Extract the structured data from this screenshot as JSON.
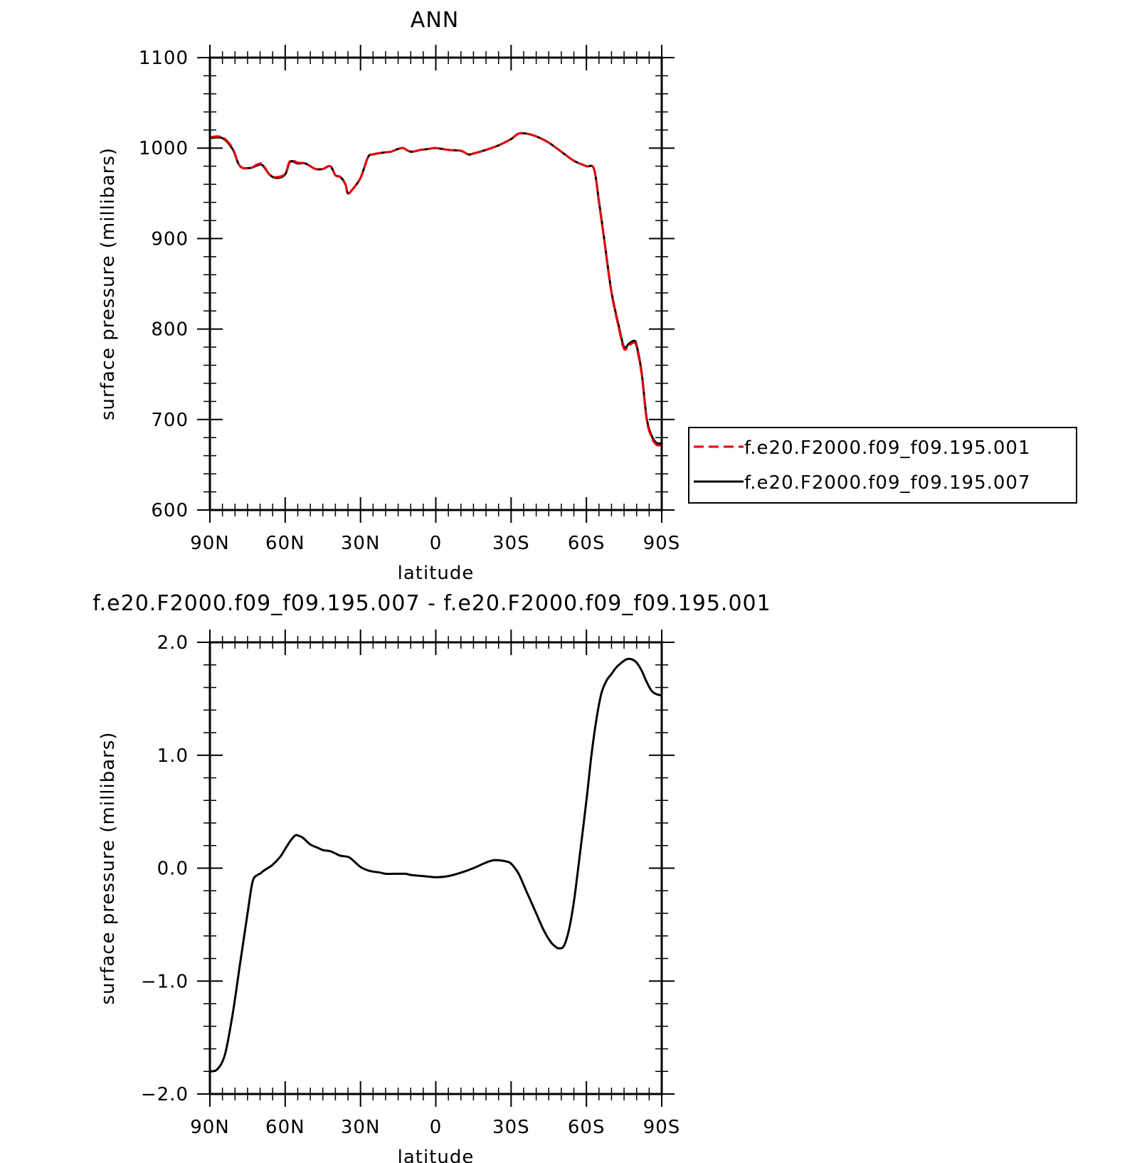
{
  "chart_data": [
    {
      "type": "line",
      "title": "ANN",
      "xlabel": "latitude",
      "ylabel": "surface pressure (millibars)",
      "xlim": [
        90,
        -90
      ],
      "ylim": [
        600,
        1100
      ],
      "x_ticks": [
        {
          "value": 90,
          "label": "90N"
        },
        {
          "value": 60,
          "label": "60N"
        },
        {
          "value": 30,
          "label": "30N"
        },
        {
          "value": 0,
          "label": "0"
        },
        {
          "value": -30,
          "label": "30S"
        },
        {
          "value": -60,
          "label": "60S"
        },
        {
          "value": -90,
          "label": "90S"
        }
      ],
      "y_ticks": [
        {
          "value": 1100,
          "label": "1100"
        },
        {
          "value": 1000,
          "label": "1000"
        },
        {
          "value": 900,
          "label": "900"
        },
        {
          "value": 800,
          "label": "800"
        },
        {
          "value": 700,
          "label": "700"
        },
        {
          "value": 600,
          "label": "600"
        }
      ],
      "grid": false,
      "legend_position": "right",
      "x": [
        90,
        85,
        81,
        78,
        74,
        71,
        69,
        66,
        63,
        60,
        58,
        55,
        52,
        48,
        45,
        42,
        40,
        38,
        36,
        35,
        33,
        30,
        27,
        25,
        21,
        18,
        15,
        13,
        10,
        6,
        3,
        0,
        -5,
        -10,
        -13,
        -15,
        -20,
        -25,
        -30,
        -33,
        -36,
        -40,
        -45,
        -50,
        -55,
        -60,
        -63,
        -65,
        -67,
        -70,
        -73,
        -75,
        -77,
        -79,
        -80,
        -82,
        -84,
        -86,
        -88,
        -90
      ],
      "series": [
        {
          "name": "f.e20.F2000.f09_f09.195.001",
          "color": "#e8000b",
          "dash": true,
          "values": [
            1012,
            1012,
            1000,
            980,
            978,
            982,
            982,
            970,
            968,
            972,
            986,
            984,
            983,
            977,
            977,
            980,
            970,
            968,
            960,
            950,
            955,
            967,
            990,
            993,
            995,
            996,
            999,
            1000,
            996,
            998,
            999,
            1000,
            998,
            997,
            993,
            994,
            998,
            1003,
            1010,
            1016,
            1016,
            1013,
            1006,
            996,
            986,
            980,
            977,
            940,
            900,
            840,
            800,
            778,
            782,
            785,
            780,
            750,
            700,
            680,
            672,
            672
          ]
        },
        {
          "name": "f.e20.F2000.f09_f09.195.007",
          "color": "#000000",
          "dash": false,
          "values": [
            1011,
            1011,
            999,
            980,
            978,
            981,
            981,
            970,
            967,
            971,
            985,
            983,
            983,
            977,
            977,
            980,
            970,
            968,
            960,
            950,
            955,
            967,
            990,
            993,
            995,
            996,
            999,
            1000,
            996,
            998,
            999,
            1000,
            998,
            997,
            993,
            994,
            998,
            1003,
            1010,
            1016,
            1016,
            1013,
            1006,
            996,
            986,
            980,
            977,
            941,
            901,
            841,
            802,
            780,
            784,
            787,
            782,
            752,
            702,
            682,
            674,
            674
          ]
        }
      ]
    },
    {
      "type": "line",
      "title": "f.e20.F2000.f09_f09.195.007 - f.e20.F2000.f09_f09.195.001",
      "xlabel": "latitude",
      "ylabel": "surface pressure (millibars)",
      "xlim": [
        90,
        -90
      ],
      "ylim": [
        -2.0,
        2.0
      ],
      "x_ticks": [
        {
          "value": 90,
          "label": "90N"
        },
        {
          "value": 60,
          "label": "60N"
        },
        {
          "value": 30,
          "label": "30N"
        },
        {
          "value": 0,
          "label": "0"
        },
        {
          "value": -30,
          "label": "30S"
        },
        {
          "value": -60,
          "label": "60S"
        },
        {
          "value": -90,
          "label": "90S"
        }
      ],
      "y_ticks": [
        {
          "value": 2.0,
          "label": "2.0"
        },
        {
          "value": 1.0,
          "label": "1.0"
        },
        {
          "value": 0.0,
          "label": "0.0"
        },
        {
          "value": -1.0,
          "label": "−1.0"
        },
        {
          "value": -2.0,
          "label": "−2.0"
        }
      ],
      "grid": false,
      "x": [
        90,
        87,
        84,
        81,
        78,
        75,
        73,
        71,
        70,
        69,
        67,
        65,
        62,
        60,
        58,
        56,
        55,
        53,
        50,
        47,
        45,
        42,
        40,
        38,
        35,
        33,
        30,
        27,
        25,
        22,
        20,
        17,
        15,
        12,
        10,
        5,
        0,
        -5,
        -10,
        -15,
        -20,
        -23,
        -25,
        -28,
        -30,
        -33,
        -36,
        -40,
        -43,
        -46,
        -48,
        -49,
        -51,
        -53,
        -55,
        -57,
        -60,
        -62,
        -64,
        -66,
        -68,
        -70,
        -72,
        -74,
        -76,
        -78,
        -80,
        -82,
        -84,
        -86,
        -88,
        -90
      ],
      "series": [
        {
          "name": "",
          "color": "#000000",
          "dash": false,
          "values": [
            -1.8,
            -1.78,
            -1.65,
            -1.3,
            -0.85,
            -0.4,
            -0.12,
            -0.06,
            -0.05,
            -0.03,
            0.0,
            0.03,
            0.1,
            0.17,
            0.24,
            0.29,
            0.29,
            0.27,
            0.21,
            0.18,
            0.16,
            0.15,
            0.13,
            0.11,
            0.1,
            0.07,
            0.01,
            -0.02,
            -0.03,
            -0.04,
            -0.05,
            -0.05,
            -0.05,
            -0.05,
            -0.06,
            -0.07,
            -0.08,
            -0.07,
            -0.04,
            0.0,
            0.05,
            0.07,
            0.07,
            0.06,
            0.04,
            -0.05,
            -0.2,
            -0.4,
            -0.55,
            -0.66,
            -0.7,
            -0.71,
            -0.69,
            -0.55,
            -0.3,
            0.05,
            0.6,
            1.0,
            1.32,
            1.55,
            1.66,
            1.72,
            1.78,
            1.82,
            1.85,
            1.85,
            1.82,
            1.75,
            1.65,
            1.57,
            1.54,
            1.53
          ]
        }
      ]
    }
  ]
}
